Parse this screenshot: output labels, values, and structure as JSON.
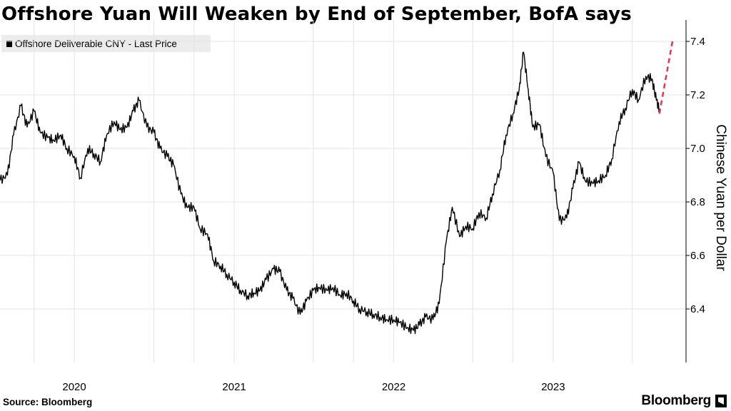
{
  "chart_data": {
    "type": "line",
    "title": "Offshore Yuan Will Weaken by End of September, BofA says",
    "ylabel": "Chinese Yuan per Dollar",
    "ylim": [
      6.2,
      7.48
    ],
    "xlim": [
      "2019-07-15",
      "2023-11-01"
    ],
    "y_ticks": [
      6.4,
      6.6,
      6.8,
      7.0,
      7.2,
      7.4
    ],
    "y_tick_labels": [
      "6.4",
      "6.6",
      "6.8",
      "7.0",
      "7.2",
      "7.4"
    ],
    "x_gridlines": [
      "2019-10-01",
      "2020-07-01",
      "2020-10-01",
      "2021-07-01",
      "2021-10-01",
      "2022-07-01",
      "2022-10-01",
      "2023-07-01"
    ],
    "x_tick_labels": [
      {
        "label": "2020",
        "at": "2020-01-01"
      },
      {
        "label": "2021",
        "at": "2021-01-01"
      },
      {
        "label": "2022",
        "at": "2022-01-01"
      },
      {
        "label": "2023",
        "at": "2023-01-01"
      }
    ],
    "grid": true,
    "legend_position": "top-left",
    "series": [
      {
        "name": "Offshore Deliverable CNY - Last Price",
        "color": "#000000",
        "style": "solid",
        "points": [
          [
            "2019-07-15",
            6.88
          ],
          [
            "2019-08-01",
            6.9
          ],
          [
            "2019-08-15",
            7.05
          ],
          [
            "2019-09-01",
            7.16
          ],
          [
            "2019-09-15",
            7.08
          ],
          [
            "2019-10-01",
            7.14
          ],
          [
            "2019-10-15",
            7.06
          ],
          [
            "2019-11-01",
            7.04
          ],
          [
            "2019-11-15",
            7.03
          ],
          [
            "2019-12-01",
            7.05
          ],
          [
            "2019-12-15",
            7.0
          ],
          [
            "2020-01-01",
            6.97
          ],
          [
            "2020-01-15",
            6.89
          ],
          [
            "2020-02-01",
            7.0
          ],
          [
            "2020-02-15",
            6.98
          ],
          [
            "2020-03-01",
            6.95
          ],
          [
            "2020-03-15",
            7.05
          ],
          [
            "2020-04-01",
            7.1
          ],
          [
            "2020-04-15",
            7.07
          ],
          [
            "2020-05-01",
            7.08
          ],
          [
            "2020-05-15",
            7.14
          ],
          [
            "2020-05-28",
            7.18
          ],
          [
            "2020-06-15",
            7.08
          ],
          [
            "2020-07-01",
            7.06
          ],
          [
            "2020-07-15",
            7.0
          ],
          [
            "2020-08-01",
            6.97
          ],
          [
            "2020-08-15",
            6.94
          ],
          [
            "2020-09-01",
            6.83
          ],
          [
            "2020-09-15",
            6.78
          ],
          [
            "2020-10-01",
            6.78
          ],
          [
            "2020-10-15",
            6.7
          ],
          [
            "2020-11-01",
            6.68
          ],
          [
            "2020-11-15",
            6.58
          ],
          [
            "2020-12-01",
            6.56
          ],
          [
            "2020-12-15",
            6.53
          ],
          [
            "2021-01-01",
            6.5
          ],
          [
            "2021-01-15",
            6.47
          ],
          [
            "2021-02-01",
            6.45
          ],
          [
            "2021-02-15",
            6.46
          ],
          [
            "2021-03-01",
            6.47
          ],
          [
            "2021-03-15",
            6.51
          ],
          [
            "2021-04-01",
            6.55
          ],
          [
            "2021-04-15",
            6.54
          ],
          [
            "2021-05-01",
            6.47
          ],
          [
            "2021-05-15",
            6.44
          ],
          [
            "2021-06-01",
            6.38
          ],
          [
            "2021-06-15",
            6.43
          ],
          [
            "2021-07-01",
            6.47
          ],
          [
            "2021-07-15",
            6.48
          ],
          [
            "2021-08-01",
            6.47
          ],
          [
            "2021-08-15",
            6.48
          ],
          [
            "2021-09-01",
            6.45
          ],
          [
            "2021-09-15",
            6.46
          ],
          [
            "2021-10-01",
            6.43
          ],
          [
            "2021-10-15",
            6.4
          ],
          [
            "2021-11-01",
            6.39
          ],
          [
            "2021-11-15",
            6.38
          ],
          [
            "2021-12-01",
            6.37
          ],
          [
            "2021-12-15",
            6.36
          ],
          [
            "2022-01-01",
            6.36
          ],
          [
            "2022-01-15",
            6.35
          ],
          [
            "2022-02-01",
            6.33
          ],
          [
            "2022-02-15",
            6.32
          ],
          [
            "2022-03-01",
            6.34
          ],
          [
            "2022-03-15",
            6.37
          ],
          [
            "2022-04-01",
            6.36
          ],
          [
            "2022-04-15",
            6.42
          ],
          [
            "2022-05-01",
            6.65
          ],
          [
            "2022-05-15",
            6.78
          ],
          [
            "2022-06-01",
            6.67
          ],
          [
            "2022-06-15",
            6.71
          ],
          [
            "2022-07-01",
            6.7
          ],
          [
            "2022-07-15",
            6.76
          ],
          [
            "2022-08-01",
            6.74
          ],
          [
            "2022-08-15",
            6.83
          ],
          [
            "2022-09-01",
            6.92
          ],
          [
            "2022-09-15",
            7.05
          ],
          [
            "2022-10-01",
            7.13
          ],
          [
            "2022-10-15",
            7.22
          ],
          [
            "2022-10-25",
            7.36
          ],
          [
            "2022-11-05",
            7.22
          ],
          [
            "2022-11-15",
            7.08
          ],
          [
            "2022-12-01",
            7.09
          ],
          [
            "2022-12-15",
            6.97
          ],
          [
            "2023-01-01",
            6.91
          ],
          [
            "2023-01-15",
            6.73
          ],
          [
            "2023-02-01",
            6.74
          ],
          [
            "2023-02-15",
            6.85
          ],
          [
            "2023-03-01",
            6.95
          ],
          [
            "2023-03-15",
            6.88
          ],
          [
            "2023-04-01",
            6.87
          ],
          [
            "2023-04-15",
            6.88
          ],
          [
            "2023-05-01",
            6.9
          ],
          [
            "2023-05-15",
            6.96
          ],
          [
            "2023-06-01",
            7.1
          ],
          [
            "2023-06-15",
            7.15
          ],
          [
            "2023-07-01",
            7.22
          ],
          [
            "2023-07-15",
            7.18
          ],
          [
            "2023-08-01",
            7.27
          ],
          [
            "2023-08-15",
            7.26
          ],
          [
            "2023-08-25",
            7.18
          ],
          [
            "2023-09-01",
            7.15
          ]
        ]
      },
      {
        "name": "",
        "color": "#e8344e",
        "style": "dashed",
        "points": [
          [
            "2023-09-01",
            7.13
          ],
          [
            "2023-10-01",
            7.4
          ]
        ]
      }
    ]
  },
  "legend": {
    "label": "Offshore Deliverable CNY - Last Price"
  },
  "footer": {
    "source": "Source: Bloomberg",
    "brand": "Bloomberg"
  }
}
